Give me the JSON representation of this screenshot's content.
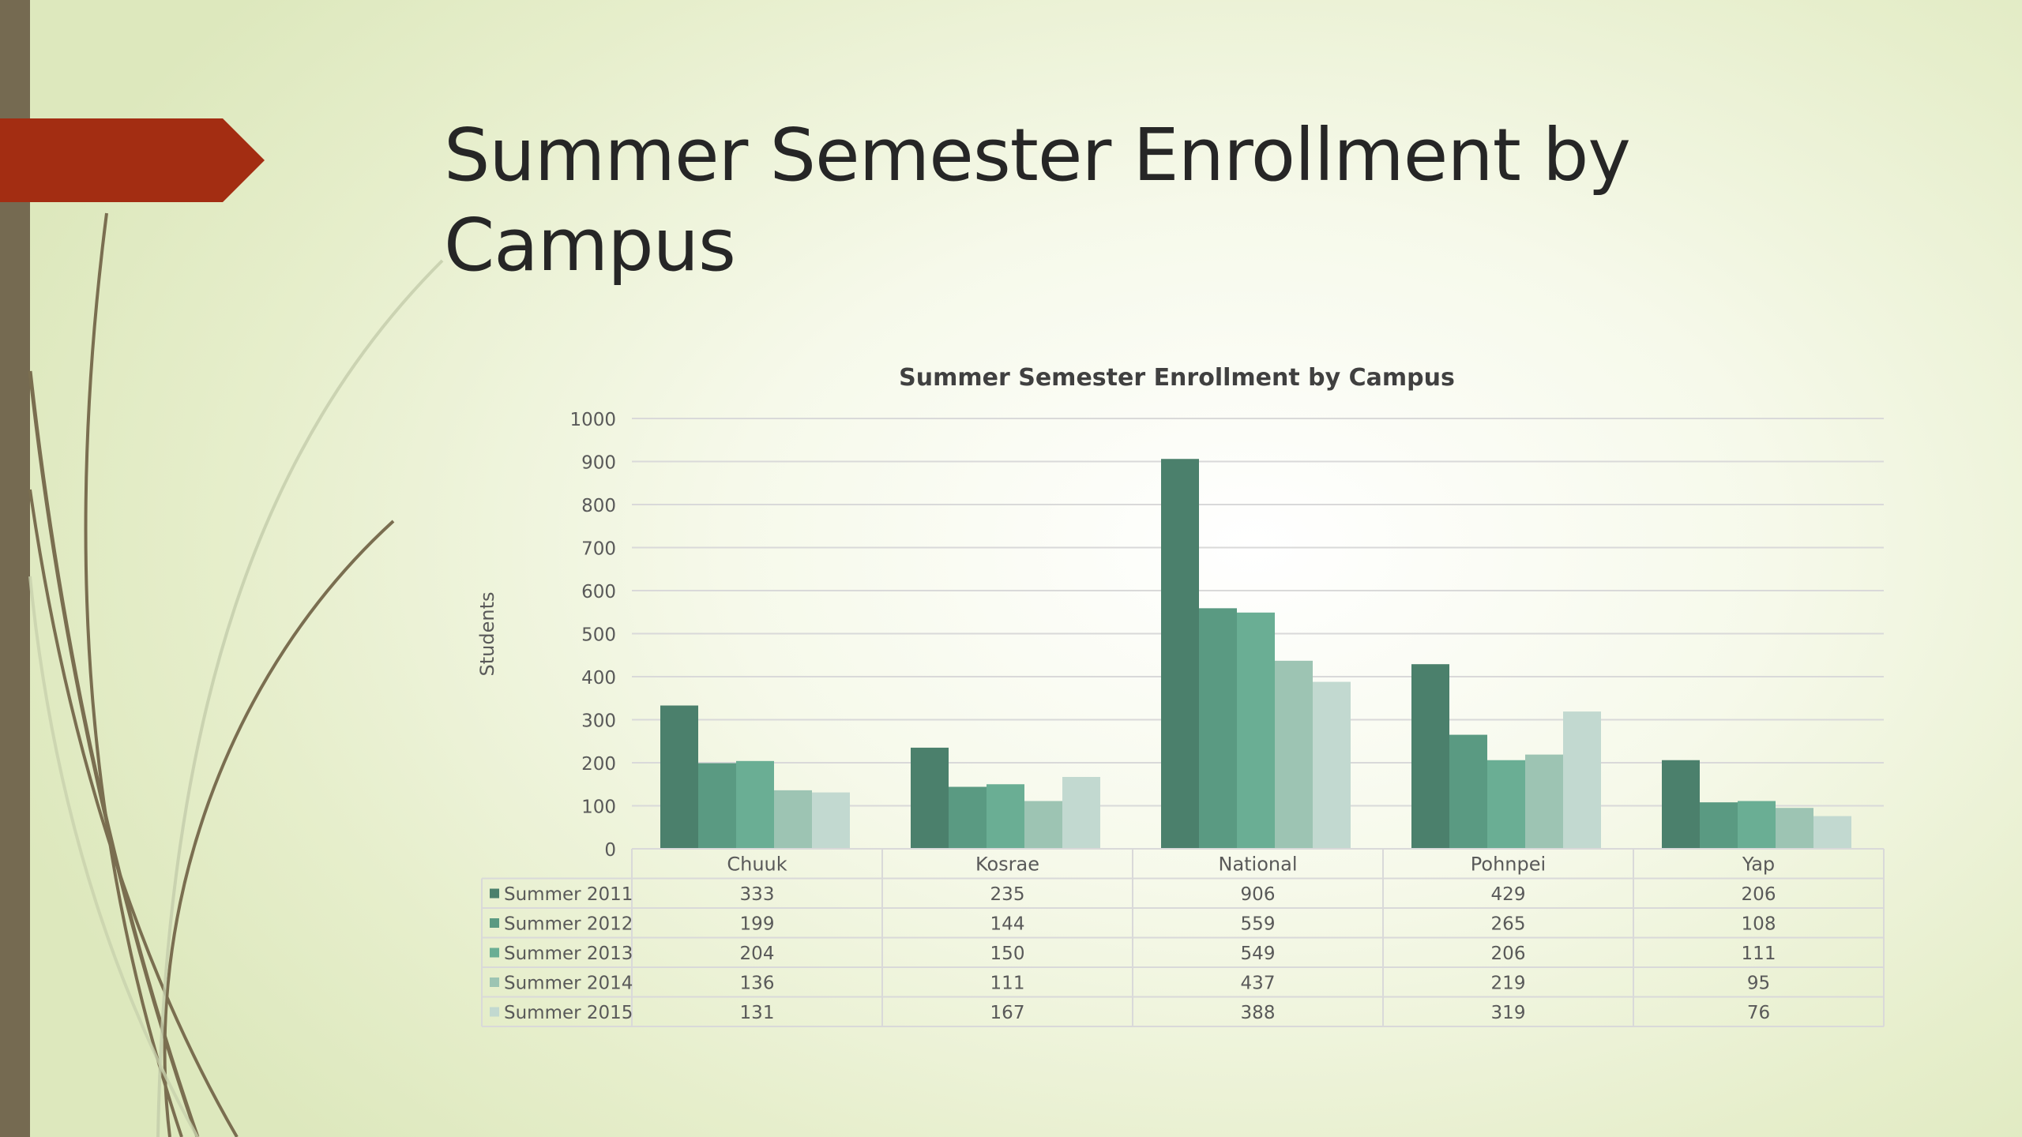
{
  "slide": {
    "title": "Summer Semester Enrollment by Campus"
  },
  "colors": {
    "accent_arrow": "#a32d12",
    "left_bar": "#756a51",
    "decor_lines": "#7a6e50",
    "series": [
      "#4b806c",
      "#5a9a82",
      "#6aae94",
      "#9dc4b3",
      "#c2d9d0"
    ]
  },
  "chart_data": {
    "type": "bar",
    "title": "Summer Semester Enrollment by Campus",
    "xlabel": "",
    "ylabel": "Students",
    "ylim": [
      0,
      1000
    ],
    "yticks": [
      0,
      100,
      200,
      300,
      400,
      500,
      600,
      700,
      800,
      900,
      1000
    ],
    "grid": true,
    "legend": "data-table",
    "categories": [
      "Chuuk",
      "Kosrae",
      "National",
      "Pohnpei",
      "Yap"
    ],
    "series": [
      {
        "name": "Summer 2011",
        "values": [
          333,
          235,
          906,
          429,
          206
        ]
      },
      {
        "name": "Summer 2012",
        "values": [
          199,
          144,
          559,
          265,
          108
        ]
      },
      {
        "name": "Summer 2013",
        "values": [
          204,
          150,
          549,
          206,
          111
        ]
      },
      {
        "name": "Summer 2014",
        "values": [
          136,
          111,
          437,
          219,
          95
        ]
      },
      {
        "name": "Summer 2015",
        "values": [
          131,
          167,
          388,
          319,
          76
        ]
      }
    ]
  }
}
